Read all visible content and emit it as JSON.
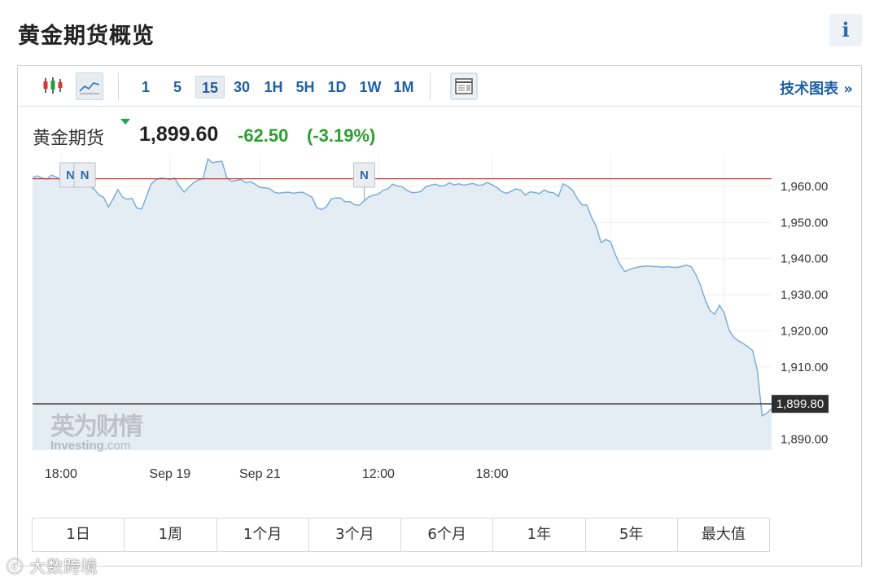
{
  "header": {
    "title": "黄金期货概览",
    "info_label": "i"
  },
  "toolbar": {
    "intervals": [
      "1",
      "5",
      "15",
      "30",
      "1H",
      "5H",
      "1D",
      "1W",
      "1M"
    ],
    "active_interval": "15",
    "tech_chart_label": "技术图表 »"
  },
  "quote": {
    "name": "黄金期货",
    "price": "1,899.60",
    "change": "-62.50",
    "change_pct": "(-3.19%)"
  },
  "ranges": [
    "1日",
    "1周",
    "1个月",
    "3个月",
    "6个月",
    "1年",
    "5年",
    "最大值"
  ],
  "watermark": {
    "cn": "英为财情",
    "en_main": "Investing",
    "en_suffix": ".com"
  },
  "footer_watermark": "大数跨境",
  "colors": {
    "line": "#7aaed8",
    "fill": "#e4edf4",
    "reference_line": "#e03030",
    "last_price_line": "#333333",
    "positive": "#2ca02c",
    "link": "#1f5fa6"
  },
  "chart_data": {
    "type": "area",
    "x_tick_labels": [
      "18:00",
      "Sep 19",
      "Sep 21",
      "12:00",
      "18:00"
    ],
    "y_tick_labels": [
      "1,960.00",
      "1,950.00",
      "1,940.00",
      "1,930.00",
      "1,920.00",
      "1,910.00",
      "1,890.00"
    ],
    "ylim": [
      1887,
      1969
    ],
    "reference_line": 1962.1,
    "last_price": {
      "value": 1899.8,
      "label": "1,899.80"
    },
    "news_markers": [
      {
        "index": 8,
        "label": "N"
      },
      {
        "index": 11,
        "label": "N"
      },
      {
        "index": 70,
        "label": "N"
      }
    ],
    "values": [
      1962.4,
      1962.9,
      1962.3,
      1962.0,
      1963.1,
      1962.6,
      1961.6,
      1961.8,
      1961.9,
      1961.0,
      1959.9,
      1960.2,
      1960.1,
      1959.3,
      1957.6,
      1957.0,
      1954.3,
      1956.5,
      1959.1,
      1957.0,
      1956.4,
      1956.7,
      1954.0,
      1953.7,
      1957.0,
      1960.6,
      1961.8,
      1962.3,
      1962.2,
      1961.9,
      1962.3,
      1960.1,
      1958.4,
      1959.8,
      1961.0,
      1961.8,
      1962.1,
      1967.6,
      1966.5,
      1966.8,
      1966.9,
      1962.4,
      1961.4,
      1961.6,
      1961.9,
      1961.0,
      1961.3,
      1960.6,
      1959.7,
      1959.6,
      1959.4,
      1958.4,
      1958.1,
      1958.3,
      1958.4,
      1958.1,
      1958.3,
      1958.4,
      1957.7,
      1957.0,
      1954.1,
      1953.6,
      1954.3,
      1956.5,
      1956.8,
      1956.8,
      1955.7,
      1955.8,
      1954.9,
      1954.8,
      1956.0,
      1957.1,
      1957.6,
      1957.9,
      1958.9,
      1959.3,
      1960.6,
      1960.1,
      1959.9,
      1958.9,
      1958.3,
      1958.3,
      1958.6,
      1959.9,
      1960.3,
      1960.6,
      1960.1,
      1960.2,
      1961.0,
      1960.4,
      1960.7,
      1960.3,
      1960.6,
      1960.8,
      1960.3,
      1960.4,
      1961.1,
      1960.4,
      1959.7,
      1958.6,
      1958.1,
      1958.6,
      1959.3,
      1959.0,
      1957.6,
      1958.5,
      1958.3,
      1958.0,
      1959.0,
      1958.4,
      1958.2,
      1957.2,
      1960.7,
      1960.0,
      1958.9,
      1956.6,
      1954.9,
      1954.8,
      1951.4,
      1948.9,
      1944.4,
      1945.3,
      1944.7,
      1941.2,
      1938.4,
      1936.4,
      1937.0,
      1937.4,
      1937.7,
      1937.9,
      1938.0,
      1937.8,
      1937.8,
      1937.6,
      1937.8,
      1937.6,
      1937.6,
      1937.8,
      1938.2,
      1937.8,
      1935.6,
      1932.6,
      1928.6,
      1925.6,
      1924.6,
      1927.1,
      1925.0,
      1920.3,
      1918.3,
      1917.2,
      1916.5,
      1915.6,
      1914.6,
      1909.0,
      1896.5,
      1897.2,
      1898.5
    ]
  }
}
